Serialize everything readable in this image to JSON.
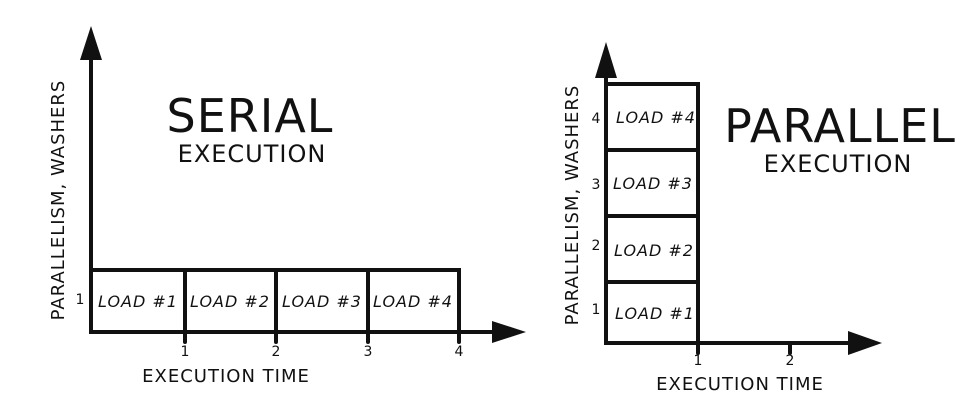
{
  "serial": {
    "title": "SERIAL",
    "subtitle": "EXECUTION",
    "y_axis_label": "PARALLELISM, WASHERS",
    "x_axis_label": "EXECUTION TIME",
    "y_ticks": [
      "1"
    ],
    "x_ticks": [
      "1",
      "2",
      "3",
      "4"
    ],
    "loads": [
      "LOAD #1",
      "LOAD #2",
      "LOAD #3",
      "LOAD #4"
    ]
  },
  "parallel": {
    "title": "PARALLEL",
    "subtitle": "EXECUTION",
    "y_axis_label": "PARALLELISM, WASHERS",
    "x_axis_label": "EXECUTION TIME",
    "y_ticks": [
      "1",
      "2",
      "3",
      "4"
    ],
    "x_ticks": [
      "1",
      "2"
    ],
    "loads": [
      "LOAD #1",
      "LOAD #2",
      "LOAD #3",
      "LOAD #4"
    ]
  }
}
